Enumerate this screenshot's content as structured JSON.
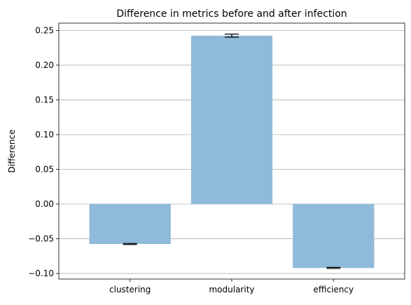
{
  "chart_data": {
    "type": "bar",
    "title": "Difference in metrics before and after infection",
    "xlabel": "",
    "ylabel": "Difference",
    "categories": [
      "clustering",
      "modularity",
      "efficiency"
    ],
    "values": [
      -0.0575,
      0.2425,
      -0.092
    ],
    "errors": [
      0.0008,
      0.0022,
      0.0008
    ],
    "ylim": [
      -0.108,
      0.2605
    ],
    "yticks": [
      -0.1,
      -0.05,
      0.0,
      0.05,
      0.1,
      0.15,
      0.2,
      0.25
    ],
    "ytick_labels": [
      "−0.10",
      "−0.05",
      "0.00",
      "0.05",
      "0.10",
      "0.15",
      "0.20",
      "0.25"
    ],
    "grid": "y",
    "bar_color": "#8fbad9"
  }
}
